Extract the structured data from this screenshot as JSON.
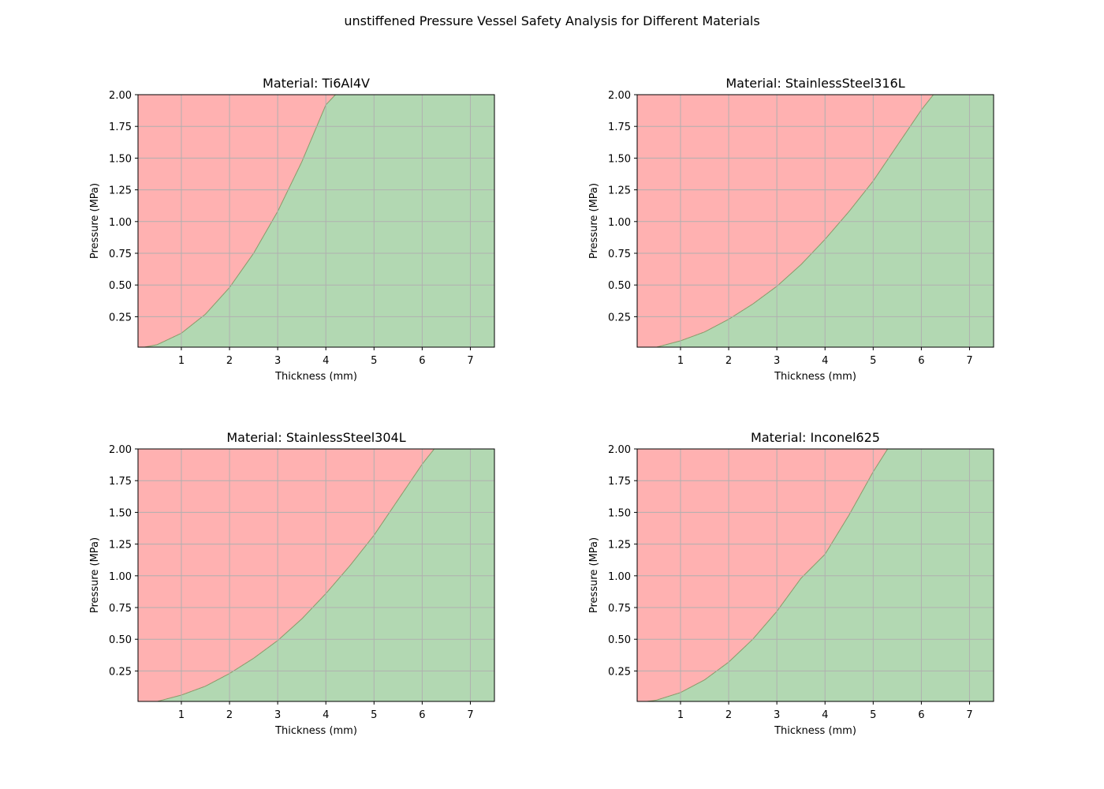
{
  "figure": {
    "title": "unstiffened Pressure Vessel Safety Analysis for Different Materials"
  },
  "colors": {
    "unsafe": "#ffb1b1",
    "safe": "#b2d8b2",
    "boundary": "#8a9a6a",
    "grid": "#b0b0b0"
  },
  "chart_data": [
    {
      "type": "area",
      "title": "Material: Ti6Al4V",
      "xlabel": "Thickness (mm)",
      "ylabel": "Pressure (MPa)",
      "xlim": [
        0.1,
        7.5
      ],
      "ylim": [
        0.01,
        2.0
      ],
      "xticks": [
        1,
        2,
        3,
        4,
        5,
        6,
        7
      ],
      "yticks": [
        0.25,
        0.5,
        0.75,
        1.0,
        1.25,
        1.5,
        1.75,
        2.0
      ],
      "ytick_labels": [
        "0.25",
        "0.50",
        "0.75",
        "1.00",
        "1.25",
        "1.50",
        "1.75",
        "2.00"
      ],
      "grid": true,
      "boundary": {
        "x": [
          0.1,
          0.5,
          1.0,
          1.5,
          2.0,
          2.5,
          3.0,
          3.5,
          4.0,
          4.2
        ],
        "y": [
          0.0,
          0.03,
          0.12,
          0.27,
          0.48,
          0.75,
          1.08,
          1.47,
          1.92,
          2.0
        ]
      }
    },
    {
      "type": "area",
      "title": "Material: StainlessSteel316L",
      "xlabel": "Thickness (mm)",
      "ylabel": "Pressure (MPa)",
      "xlim": [
        0.1,
        7.5
      ],
      "ylim": [
        0.01,
        2.0
      ],
      "xticks": [
        1,
        2,
        3,
        4,
        5,
        6,
        7
      ],
      "yticks": [
        0.25,
        0.5,
        0.75,
        1.0,
        1.25,
        1.5,
        1.75,
        2.0
      ],
      "ytick_labels": [
        "0.25",
        "0.50",
        "0.75",
        "1.00",
        "1.25",
        "1.50",
        "1.75",
        "2.00"
      ],
      "grid": true,
      "boundary": {
        "x": [
          0.1,
          0.5,
          1.0,
          1.5,
          2.0,
          2.5,
          3.0,
          3.5,
          4.0,
          4.5,
          5.0,
          5.5,
          6.0,
          6.25
        ],
        "y": [
          0.0,
          0.01,
          0.06,
          0.13,
          0.23,
          0.35,
          0.49,
          0.66,
          0.86,
          1.08,
          1.32,
          1.6,
          1.88,
          2.0
        ]
      }
    },
    {
      "type": "area",
      "title": "Material: StainlessSteel304L",
      "xlabel": "Thickness (mm)",
      "ylabel": "Pressure (MPa)",
      "xlim": [
        0.1,
        7.5
      ],
      "ylim": [
        0.01,
        2.0
      ],
      "xticks": [
        1,
        2,
        3,
        4,
        5,
        6,
        7
      ],
      "yticks": [
        0.25,
        0.5,
        0.75,
        1.0,
        1.25,
        1.5,
        1.75,
        2.0
      ],
      "ytick_labels": [
        "0.25",
        "0.50",
        "0.75",
        "1.00",
        "1.25",
        "1.50",
        "1.75",
        "2.00"
      ],
      "grid": true,
      "boundary": {
        "x": [
          0.1,
          0.5,
          1.0,
          1.5,
          2.0,
          2.5,
          3.0,
          3.5,
          4.0,
          4.5,
          5.0,
          5.5,
          6.0,
          6.25
        ],
        "y": [
          0.0,
          0.01,
          0.06,
          0.13,
          0.23,
          0.35,
          0.49,
          0.66,
          0.86,
          1.08,
          1.32,
          1.6,
          1.88,
          2.0
        ]
      }
    },
    {
      "type": "area",
      "title": "Material: Inconel625",
      "xlabel": "Thickness (mm)",
      "ylabel": "Pressure (MPa)",
      "xlim": [
        0.1,
        7.5
      ],
      "ylim": [
        0.01,
        2.0
      ],
      "xticks": [
        1,
        2,
        3,
        4,
        5,
        6,
        7
      ],
      "yticks": [
        0.25,
        0.5,
        0.75,
        1.0,
        1.25,
        1.5,
        1.75,
        2.0
      ],
      "ytick_labels": [
        "0.25",
        "0.50",
        "0.75",
        "1.00",
        "1.25",
        "1.50",
        "1.75",
        "2.00"
      ],
      "grid": true,
      "boundary": {
        "x": [
          0.1,
          0.5,
          1.0,
          1.5,
          2.0,
          2.5,
          3.0,
          3.5,
          4.0,
          4.5,
          5.0,
          5.3
        ],
        "y": [
          0.0,
          0.02,
          0.08,
          0.18,
          0.32,
          0.5,
          0.72,
          0.98,
          1.17,
          1.48,
          1.82,
          2.0
        ]
      }
    }
  ]
}
